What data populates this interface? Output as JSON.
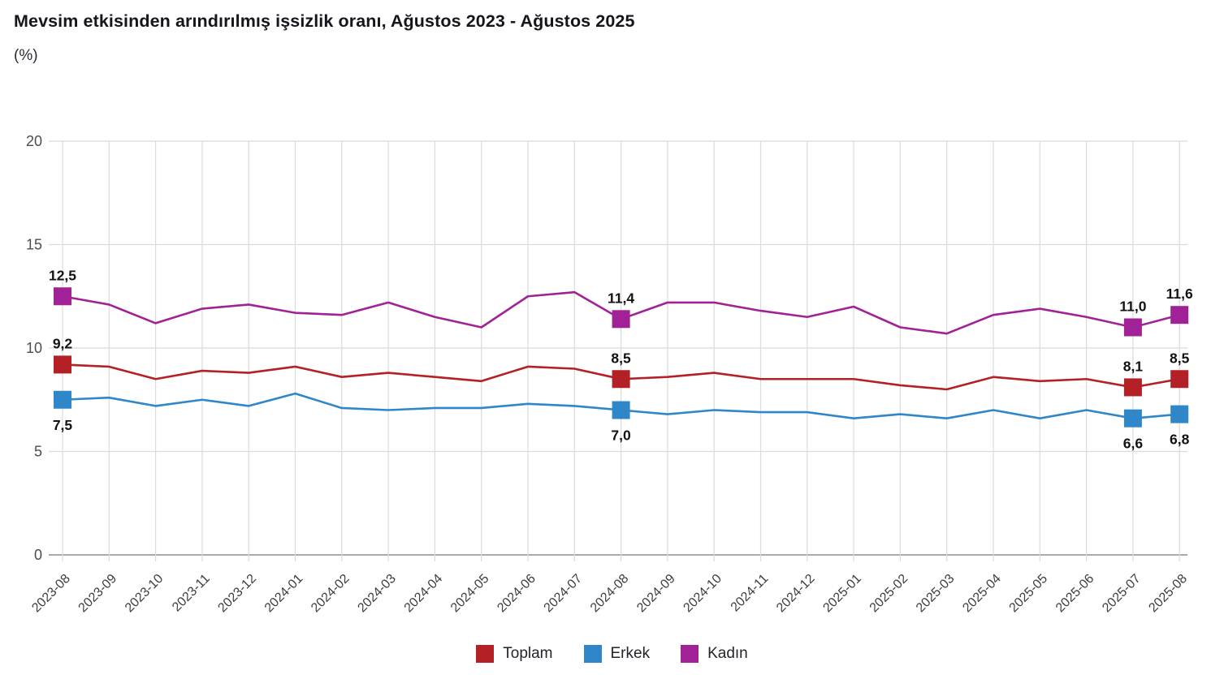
{
  "title": "Mevsim etkisinden arındırılmış işsizlik oranı, Ağustos 2023 - Ağustos 2025",
  "subtitle": "(%)",
  "chart_data": {
    "type": "line",
    "x": [
      "2023-08",
      "2023-09",
      "2023-10",
      "2023-11",
      "2023-12",
      "2024-01",
      "2024-02",
      "2024-03",
      "2024-04",
      "2024-05",
      "2024-06",
      "2024-07",
      "2024-08",
      "2024-09",
      "2024-10",
      "2024-11",
      "2024-12",
      "2025-01",
      "2025-02",
      "2025-03",
      "2025-04",
      "2025-05",
      "2025-06",
      "2025-07",
      "2025-08"
    ],
    "title": "Mevsim etkisinden arındırılmış işsizlik oranı, Ağustos 2023 - Ağustos 2025",
    "ylabel": "(%)",
    "ylim": [
      0,
      20
    ],
    "yticks": [
      0,
      5,
      10,
      15,
      20
    ],
    "grid": true,
    "legend_position": "bottom",
    "decimal_separator": ",",
    "series": [
      {
        "name": "Toplam",
        "color": "#b32025",
        "values": [
          9.2,
          9.1,
          8.5,
          8.9,
          8.8,
          9.1,
          8.6,
          8.8,
          8.6,
          8.4,
          9.1,
          9.0,
          8.5,
          8.6,
          8.8,
          8.5,
          8.5,
          8.5,
          8.2,
          8.0,
          8.6,
          8.4,
          8.5,
          8.1,
          8.5
        ],
        "labeled_points": [
          {
            "index": 0,
            "label": "9,2",
            "placement": "above"
          },
          {
            "index": 12,
            "label": "8,5",
            "placement": "above"
          },
          {
            "index": 23,
            "label": "8,1",
            "placement": "above"
          },
          {
            "index": 24,
            "label": "8,5",
            "placement": "above"
          }
        ]
      },
      {
        "name": "Erkek",
        "color": "#2f87c9",
        "values": [
          7.5,
          7.6,
          7.2,
          7.5,
          7.2,
          7.8,
          7.1,
          7.0,
          7.1,
          7.1,
          7.3,
          7.2,
          7.0,
          6.8,
          7.0,
          6.9,
          6.9,
          6.6,
          6.8,
          6.6,
          7.0,
          6.6,
          7.0,
          6.6,
          6.8
        ],
        "labeled_points": [
          {
            "index": 0,
            "label": "7,5",
            "placement": "below"
          },
          {
            "index": 12,
            "label": "7,0",
            "placement": "below"
          },
          {
            "index": 23,
            "label": "6,6",
            "placement": "below"
          },
          {
            "index": 24,
            "label": "6,8",
            "placement": "below"
          }
        ]
      },
      {
        "name": "Kadın",
        "color": "#a02296",
        "values": [
          12.5,
          12.1,
          11.2,
          11.9,
          12.1,
          11.7,
          11.6,
          12.2,
          11.5,
          11.0,
          12.5,
          12.7,
          11.4,
          12.2,
          12.2,
          11.8,
          11.5,
          12.0,
          11.0,
          10.7,
          11.6,
          11.9,
          11.5,
          11.0,
          11.6
        ],
        "labeled_points": [
          {
            "index": 0,
            "label": "12,5",
            "placement": "above"
          },
          {
            "index": 12,
            "label": "11,4",
            "placement": "above"
          },
          {
            "index": 23,
            "label": "11,0",
            "placement": "above"
          },
          {
            "index": 24,
            "label": "11,6",
            "placement": "above"
          }
        ]
      }
    ]
  }
}
